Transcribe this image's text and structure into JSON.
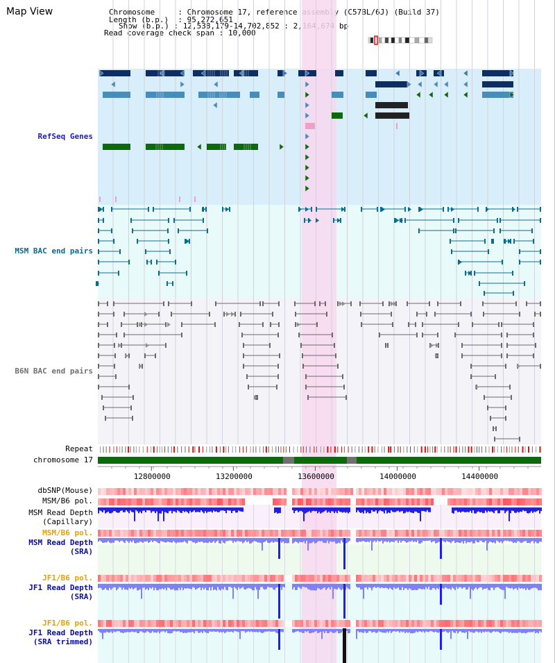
{
  "title": "Map View",
  "info": {
    "chromosome_key": "Chromosome",
    "chromosome_val": "Chromosome 17, reference assembly (C57BL/6J) (Build 37)",
    "length_key": "Length (b.p.)",
    "length_val": "95,272,651",
    "show_key": "Show (b.p.)",
    "show_val": "12,538,179-14,702,852 : 2,164,674 bp",
    "read_key": "Read coverage check span",
    "read_val": "10,000"
  },
  "tracks": {
    "refseq": "RefSeq Genes",
    "msm_bac": "MSM BAC end pairs",
    "b6n_bac": "B6N BAC end pairs",
    "repeat": "Repeat",
    "chromosome": "chromosome 17",
    "dbsnp": "dbSNP(Mouse)",
    "msm_b6_pol": "MSM/B6 pol.",
    "msm_rd_cap_1": "MSM Read Depth",
    "msm_rd_cap_2": "(Capillary)",
    "msm_b6_pol_2": "MSM/B6 pol.",
    "msm_rd_sra_1": "MSM Read Depth",
    "msm_rd_sra_2": "(SRA)",
    "jf1_b6_pol": "JF1/B6 pol.",
    "jf1_rd_sra_1": "JF1 Read Depth",
    "jf1_rd_sra_2": "(SRA)",
    "jf1_b6_pol_2": "JF1/B6 pol.",
    "jf1_rd_trim_1": "JF1 Read Depth",
    "jf1_rd_trim_2": "(SRA trimmed)"
  },
  "axis": {
    "ticks": [
      {
        "value": 12800000,
        "label": "12800000"
      },
      {
        "value": 13200000,
        "label": "13200000"
      },
      {
        "value": 13600000,
        "label": "13600000"
      },
      {
        "value": 14000000,
        "label": "14000000"
      },
      {
        "value": 14400000,
        "label": "14400000"
      }
    ],
    "start": 12538179,
    "end": 14702852
  },
  "colors": {
    "refseq_bg": "#d8eefa",
    "msm_bg": "#e8fafa",
    "b6n_bg": "#f4f4f8",
    "highlight": "#f8d8f0",
    "gene_dark": "#0c2e64",
    "gene_mid": "#4a8cb8",
    "gene_green": "#0c6a0c",
    "gene_pink": "#f0a0c8",
    "msm_line": "#106a8a",
    "b6n_line": "#6a6a6a",
    "chrom_green": "#0c6a0c",
    "chrom_gray": "#707070",
    "depth_blue": "#1e1ef0",
    "depth_light": "#8080f8",
    "msm_label": "#0c6a8a",
    "refseq_label": "#1e1eaa",
    "pol_label": "#e8a000",
    "depth_label": "#0c0c9c"
  }
}
